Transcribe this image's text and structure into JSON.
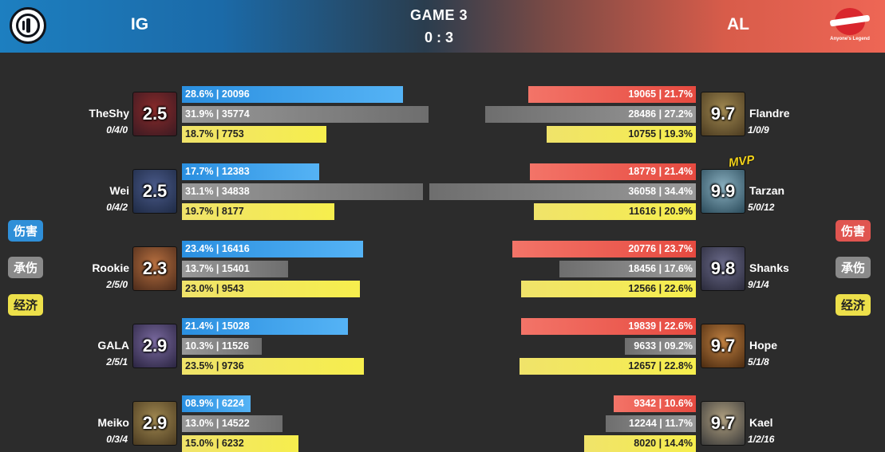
{
  "header": {
    "game": "GAME 3",
    "score": "0 : 3",
    "team_left": "IG",
    "team_right": "AL",
    "al_logo_text": "Anyone's Legend"
  },
  "legend": {
    "damage": "伤害",
    "tank": "承伤",
    "gold": "经济"
  },
  "mvp_label": "MVP",
  "left_players": [
    {
      "name": "TheShy",
      "kda": "0/4/0",
      "rating": "2.5",
      "damage": "28.6% | 20096",
      "tank": "31.9% | 35774",
      "gold": "18.7% | 7753",
      "damage_share": 0.286,
      "tank_share": 0.319,
      "gold_share": 0.187
    },
    {
      "name": "Wei",
      "kda": "0/4/2",
      "rating": "2.5",
      "damage": "17.7% | 12383",
      "tank": "31.1% | 34838",
      "gold": "19.7% | 8177",
      "damage_share": 0.177,
      "tank_share": 0.311,
      "gold_share": 0.197
    },
    {
      "name": "Rookie",
      "kda": "2/5/0",
      "rating": "2.3",
      "damage": "23.4% | 16416",
      "tank": "13.7% | 15401",
      "gold": "23.0% | 9543",
      "damage_share": 0.234,
      "tank_share": 0.137,
      "gold_share": 0.23
    },
    {
      "name": "GALA",
      "kda": "2/5/1",
      "rating": "2.9",
      "damage": "21.4% | 15028",
      "tank": "10.3% | 11526",
      "gold": "23.5% | 9736",
      "damage_share": 0.214,
      "tank_share": 0.103,
      "gold_share": 0.235
    },
    {
      "name": "Meiko",
      "kda": "0/3/4",
      "rating": "2.9",
      "damage": "08.9% | 6224",
      "tank": "13.0% | 14522",
      "gold": "15.0% | 6232",
      "damage_share": 0.089,
      "tank_share": 0.13,
      "gold_share": 0.15
    }
  ],
  "right_players": [
    {
      "name": "Flandre",
      "kda": "1/0/9",
      "rating": "9.7",
      "damage": "19065 | 21.7%",
      "tank": "28486 | 27.2%",
      "gold": "10755 | 19.3%",
      "damage_share": 0.217,
      "tank_share": 0.272,
      "gold_share": 0.193
    },
    {
      "name": "Tarzan",
      "kda": "5/0/12",
      "rating": "9.9",
      "damage": "18779 | 21.4%",
      "tank": "36058 | 34.4%",
      "gold": "11616 | 20.9%",
      "damage_share": 0.214,
      "tank_share": 0.344,
      "gold_share": 0.209
    },
    {
      "name": "Shanks",
      "kda": "9/1/4",
      "rating": "9.8",
      "damage": "20776 | 23.7%",
      "tank": "18456 | 17.6%",
      "gold": "12566 | 22.6%",
      "damage_share": 0.237,
      "tank_share": 0.176,
      "gold_share": 0.226
    },
    {
      "name": "Hope",
      "kda": "5/1/8",
      "rating": "9.7",
      "damage": "19839 | 22.6%",
      "tank": "9633 | 09.2%",
      "gold": "12657 | 22.8%",
      "damage_share": 0.226,
      "tank_share": 0.092,
      "gold_share": 0.228
    },
    {
      "name": "Kael",
      "kda": "1/2/16",
      "rating": "9.7",
      "damage": "9342 | 10.6%",
      "tank": "12244 | 11.7%",
      "gold": "8020 | 14.4%",
      "damage_share": 0.106,
      "tank_share": 0.117,
      "gold_share": 0.144
    }
  ],
  "colors": {
    "left_damage": "#2a8fe0",
    "right_damage": "#e64a40",
    "tank": "#8a8a8a",
    "gold": "#f0e36a"
  }
}
